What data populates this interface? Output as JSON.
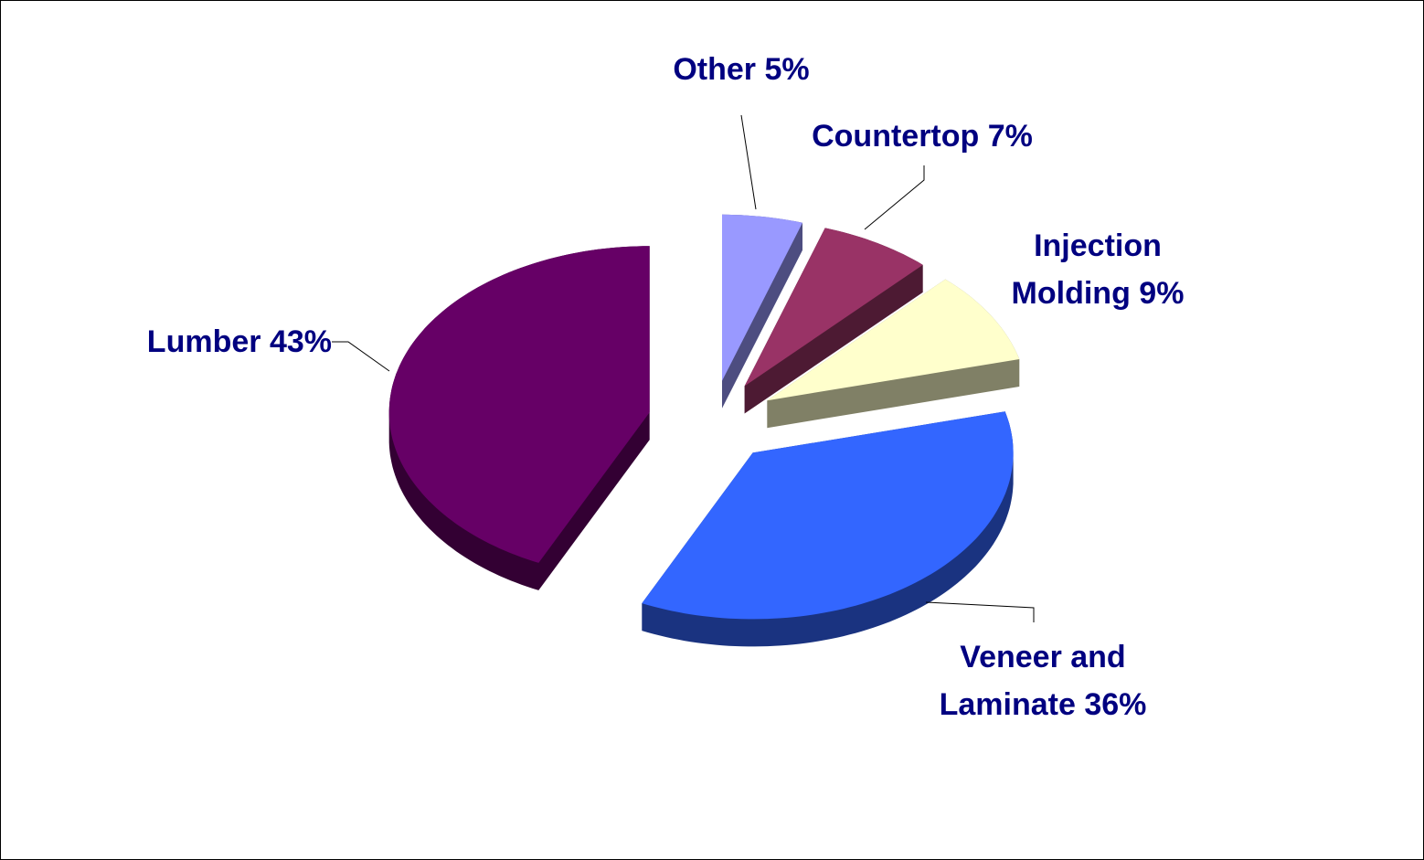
{
  "chart_data": {
    "type": "pie",
    "categories": [
      "Other",
      "Countertop",
      "Injection Molding",
      "Veneer and Laminate",
      "Lumber"
    ],
    "values": [
      5,
      7,
      9,
      36,
      43
    ],
    "value_labels": [
      "5%",
      "7%",
      "9%",
      "36%",
      "43%"
    ],
    "colors": [
      "#9999ff",
      "#993366",
      "#ffffcc",
      "#3366ff",
      "#660066"
    ]
  }
}
